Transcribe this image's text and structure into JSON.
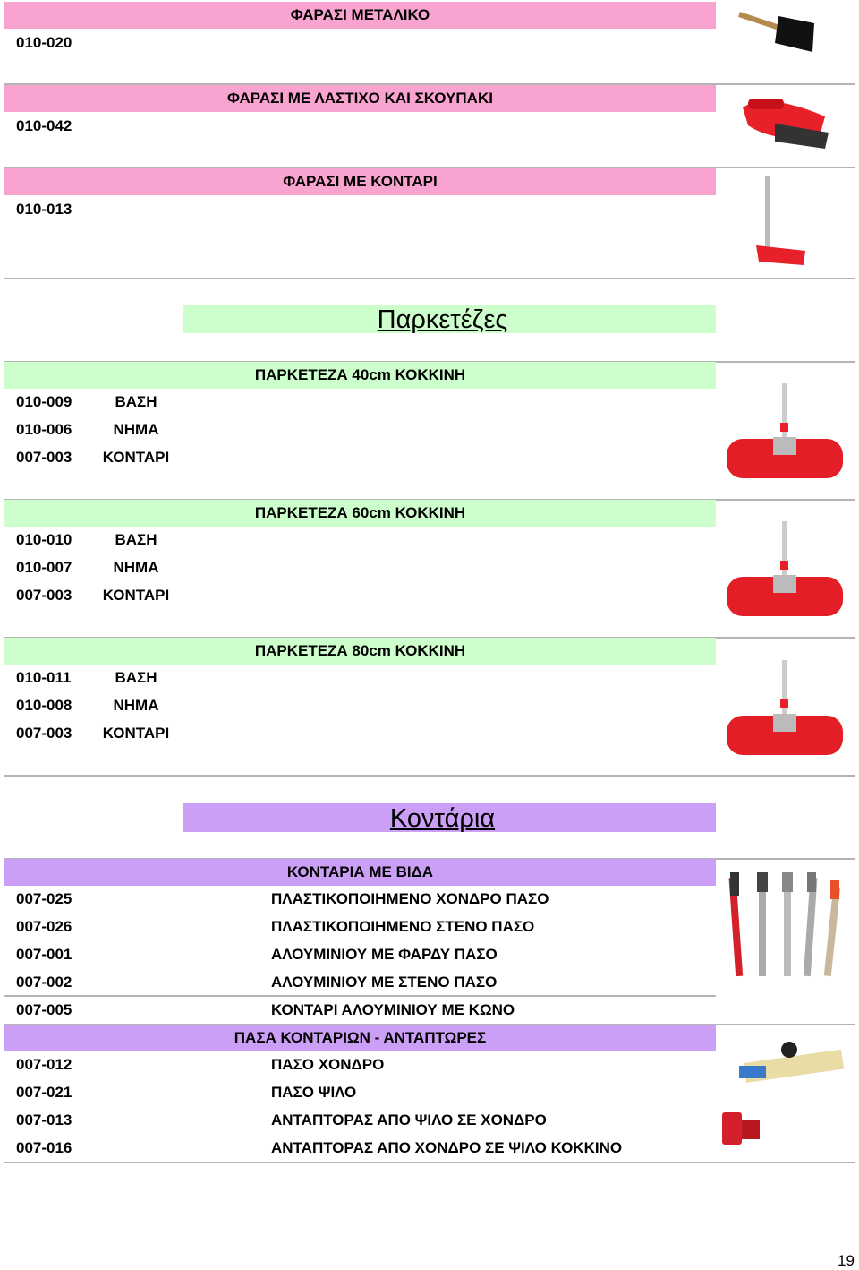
{
  "dustpans": [
    {
      "title": "ΦΑΡΑΣΙ ΜΕΤΑΛΙΚΟ",
      "code": "010-020"
    },
    {
      "title": "ΦΑΡΑΣΙ ΜΕ ΛΑΣΤΙΧΟ ΚΑΙ ΣΚΟΥΠΑΚΙ",
      "code": "010-042"
    },
    {
      "title": "ΦΑΡΑΣΙ ΜΕ ΚΟΝΤΑΡΙ",
      "code": "010-013"
    }
  ],
  "sections": [
    {
      "heading": "Παρκετέζες",
      "groups": [
        {
          "title": "ΠΑΡΚΕΤΕΖΑ 40cm ΚΟΚΚΙΝΗ",
          "rows": [
            [
              "010-009",
              "ΒΑΣΗ"
            ],
            [
              "010-006",
              "ΝΗΜΑ"
            ],
            [
              "007-003",
              "ΚΟΝΤΑΡΙ"
            ]
          ]
        },
        {
          "title": "ΠΑΡΚΕΤΕΖΑ 60cm ΚΟΚΚΙΝΗ",
          "rows": [
            [
              "010-010",
              "ΒΑΣΗ"
            ],
            [
              "010-007",
              "ΝΗΜΑ"
            ],
            [
              "007-003",
              "ΚΟΝΤΑΡΙ"
            ]
          ]
        },
        {
          "title": "ΠΑΡΚΕΤΕΖΑ 80cm ΚΟΚΚΙΝΗ",
          "rows": [
            [
              "010-011",
              "ΒΑΣΗ"
            ],
            [
              "010-008",
              "ΝΗΜΑ"
            ],
            [
              "007-003",
              "ΚΟΝΤΑΡΙ"
            ]
          ]
        }
      ]
    },
    {
      "heading": "Κοντάρια",
      "groups": [
        {
          "title": "ΚΟΝΤΑΡΙΑ ΜΕ ΒΙΔΑ",
          "rows": [
            [
              "007-025",
              "ΠΛΑΣΤΙΚΟΠΟΙΗΜΕΝΟ ΧΟΝΔΡΟ ΠΑΣΟ"
            ],
            [
              "007-026",
              "ΠΛΑΣΤΙΚΟΠΟΙΗΜΕΝΟ ΣΤΕΝΟ ΠΑΣΟ"
            ],
            [
              "007-001",
              "ΑΛΟΥΜΙΝΙΟΥ ΜΕ ΦΑΡΔΥ ΠΑΣΟ"
            ],
            [
              "007-002",
              "ΑΛΟΥΜΙΝΙΟΥ ΜΕ ΣΤΕΝΟ ΠΑΣΟ"
            ],
            [
              "007-005",
              "ΚΟΝΤΑΡΙ ΑΛΟΥΜΙΝΙΟΥ ΜΕ ΚΩΝΟ"
            ]
          ]
        },
        {
          "title": "ΠΑΣΑ ΚΟΝΤΑΡΙΩΝ - ΑΝΤΑΠΤΩΡΕΣ",
          "rows": [
            [
              "007-012",
              "ΠΑΣΟ ΧΟΝΔΡΟ"
            ],
            [
              "007-021",
              "ΠΑΣΟ ΨΙΛΟ"
            ],
            [
              "007-013",
              "ΑΝΤΑΠΤΟΡΑΣ ΑΠΟ ΨΙΛΟ ΣΕ ΧΟΝΔΡΟ"
            ],
            [
              "007-016",
              "ΑΝΤΑΠΤΟΡΑΣ ΑΠΟ ΧΟΝΔΡΟ ΣΕ ΨΙΛΟ ΚΟΚΚΙΝΟ"
            ]
          ]
        }
      ]
    }
  ],
  "page_number": "19"
}
